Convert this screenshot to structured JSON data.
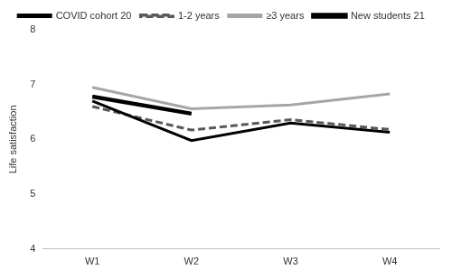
{
  "chart_data": {
    "type": "line",
    "y_label": "Life satisfaction",
    "categories": [
      "W1",
      "W2",
      "W3",
      "W4"
    ],
    "series": [
      {
        "name": "COVID cohort 20",
        "color": "#000000",
        "line_style": "solid",
        "values": [
          6.7,
          5.98,
          6.3,
          6.13
        ]
      },
      {
        "name": "1-2 years",
        "color": "#595959",
        "line_style": "dashed",
        "values": [
          6.6,
          6.17,
          6.36,
          6.18
        ]
      },
      {
        "name": "≥3 years",
        "color": "#a6a6a6",
        "line_style": "solid",
        "values": [
          6.95,
          6.56,
          6.63,
          6.83
        ]
      },
      {
        "name": "New students 21",
        "color": "#000000",
        "line_style": "double",
        "values": [
          6.78,
          6.47,
          null,
          null
        ]
      }
    ],
    "ylim": [
      4,
      8
    ],
    "yticks": [
      4,
      5,
      6,
      7,
      8
    ],
    "grid": false,
    "legend": "top"
  }
}
